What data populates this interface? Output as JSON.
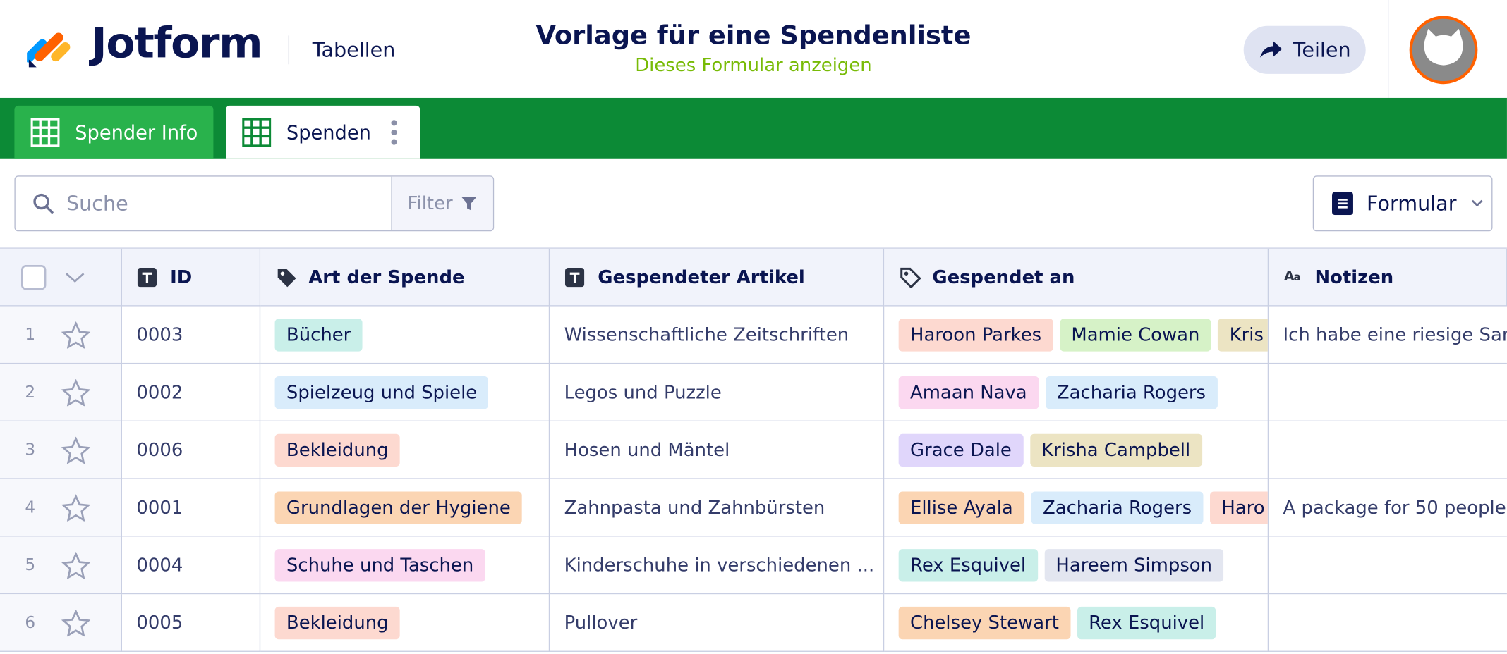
{
  "header": {
    "brand": "Jotform",
    "section": "Tabellen",
    "title": "Vorlage für eine Spendenliste",
    "subtitle": "Dieses Formular anzeigen",
    "share": "Teilen"
  },
  "tabs": [
    "Spender Info",
    "Spenden"
  ],
  "toolbar": {
    "search": "Suche",
    "filter": "Filter",
    "view": "Formular"
  },
  "table": {
    "columns": [
      "ID",
      "Art der Spende",
      "Gespendeter Artikel",
      "Gespendet an",
      "Notizen"
    ],
    "rows": [
      {
        "num": "1",
        "id": "0003",
        "type": {
          "text": "Bücher",
          "color": "#c9efe9"
        },
        "item": "Wissenschaftliche Zeitschriften",
        "to": [
          {
            "text": "Haroon Parkes",
            "color": "#fdd9d0"
          },
          {
            "text": "Mamie Cowan",
            "color": "#d6f2c7"
          },
          {
            "text": "Kris",
            "color": "#ece4c3"
          }
        ],
        "notes": "Ich habe eine riesige Sam"
      },
      {
        "num": "2",
        "id": "0002",
        "type": {
          "text": "Spielzeug und Spiele",
          "color": "#d9ecfb"
        },
        "item": "Legos und Puzzle",
        "to": [
          {
            "text": "Amaan Nava",
            "color": "#fbd8f0"
          },
          {
            "text": "Zacharia Rogers",
            "color": "#d9ecfb"
          }
        ],
        "notes": null
      },
      {
        "num": "3",
        "id": "0006",
        "type": {
          "text": "Bekleidung",
          "color": "#fdd9d0"
        },
        "item": "Hosen und Mäntel",
        "to": [
          {
            "text": "Grace Dale",
            "color": "#e0d6fb"
          },
          {
            "text": "Krisha Campbell",
            "color": "#ece4c3"
          }
        ],
        "notes": null
      },
      {
        "num": "4",
        "id": "0001",
        "type": {
          "text": "Grundlagen der Hygiene",
          "color": "#fbd5b3"
        },
        "item": "Zahnpasta und Zahnbürsten",
        "to": [
          {
            "text": "Ellise Ayala",
            "color": "#fbd5b3"
          },
          {
            "text": "Zacharia Rogers",
            "color": "#d9ecfb"
          },
          {
            "text": "Haro",
            "color": "#fdd9d0"
          }
        ],
        "notes": "A package for 50 people"
      },
      {
        "num": "5",
        "id": "0004",
        "type": {
          "text": "Schuhe und Taschen",
          "color": "#fbd8f0"
        },
        "item": "Kinderschuhe in verschiedenen ...",
        "to": [
          {
            "text": "Rex Esquivel",
            "color": "#c9efe9"
          },
          {
            "text": "Hareem Simpson",
            "color": "#e3e6f0"
          }
        ],
        "notes": null
      },
      {
        "num": "6",
        "id": "0005",
        "type": {
          "text": "Bekleidung",
          "color": "#fdd9d0"
        },
        "item": "Pullover",
        "to": [
          {
            "text": "Chelsey Stewart",
            "color": "#fbd5b3"
          },
          {
            "text": "Rex Esquivel",
            "color": "#c9efe9"
          }
        ],
        "notes": null
      }
    ]
  }
}
